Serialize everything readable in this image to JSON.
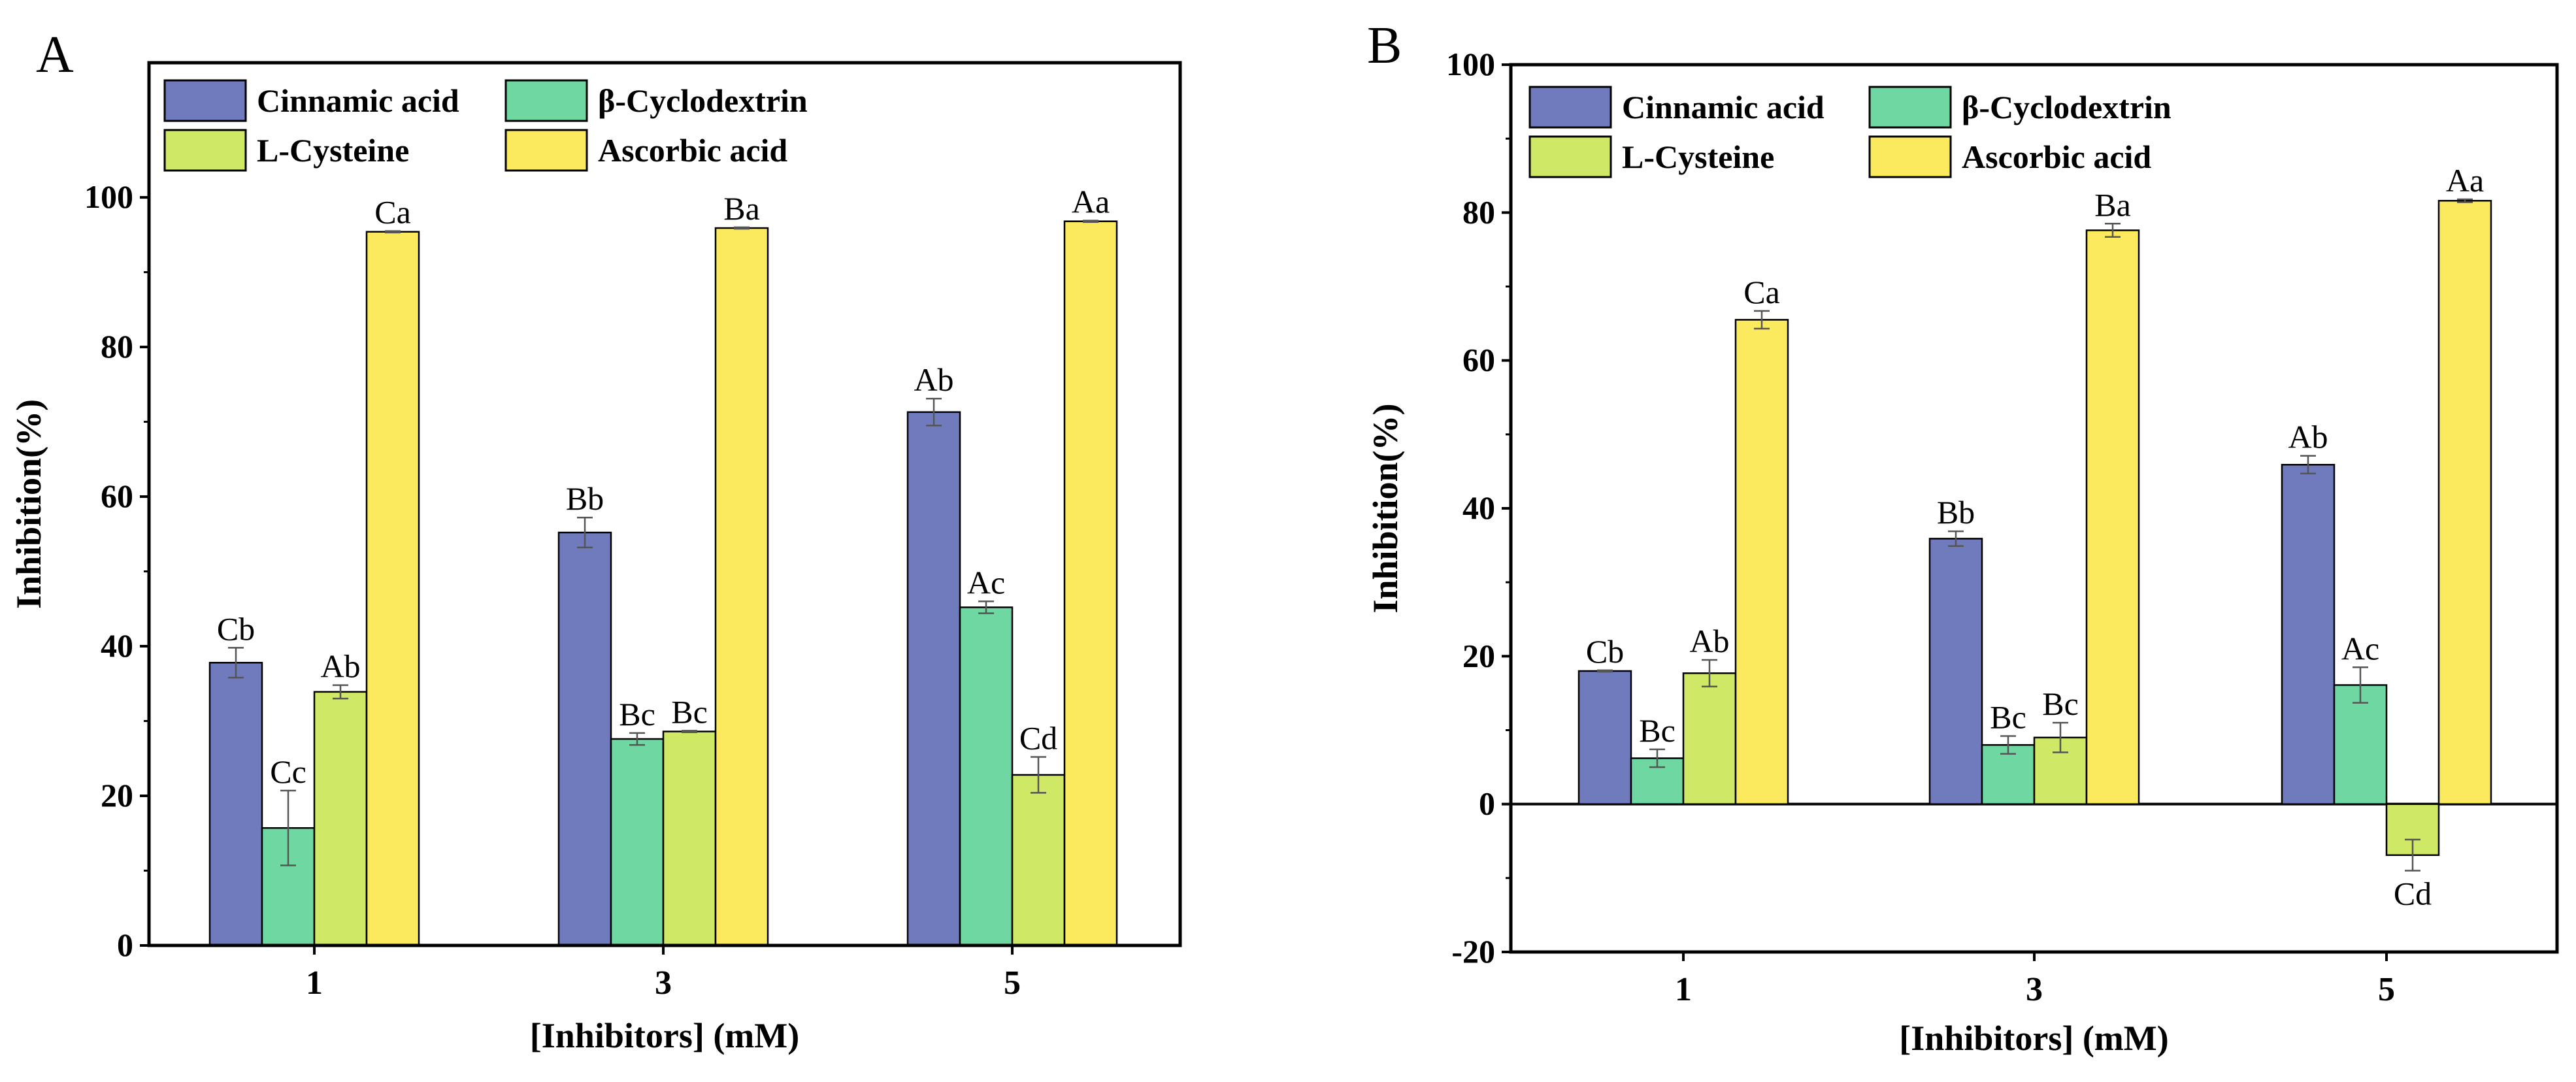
{
  "series_colors": [
    "#6f7bbd",
    "#6fd7a2",
    "#cfe865",
    "#fbea5e"
  ],
  "chart_data": [
    {
      "panel_label": "A",
      "type": "bar",
      "xlabel": "[Inhibitors] (mM)",
      "ylabel": "Inhibition(%)",
      "categories": [
        "1",
        "3",
        "5"
      ],
      "ylim": [
        0,
        118
      ],
      "yticks": [
        0,
        20,
        40,
        60,
        80,
        100
      ],
      "legend": [
        [
          "Cinnamic acid",
          "β-Cyclodextrin"
        ],
        [
          "L-Cysteine",
          "Ascorbic acid"
        ]
      ],
      "series": [
        {
          "name": "Cinnamic acid",
          "values": [
            37.8,
            55.2,
            71.3
          ],
          "errors": [
            2.0,
            2.0,
            1.8
          ],
          "labels": [
            "Cb",
            "Bb",
            "Ab"
          ]
        },
        {
          "name": "β-Cyclodextrin",
          "values": [
            15.7,
            27.6,
            45.2
          ],
          "errors": [
            5.0,
            0.8,
            0.8
          ],
          "labels": [
            "Cc",
            "Bc",
            "Ac"
          ]
        },
        {
          "name": "L-Cysteine",
          "values": [
            33.9,
            28.6,
            22.8
          ],
          "errors": [
            0.9,
            0.1,
            2.4
          ],
          "labels": [
            "Ab",
            "Bc",
            "Cd"
          ]
        },
        {
          "name": "Ascorbic acid",
          "values": [
            95.4,
            95.9,
            96.8
          ],
          "errors": [
            0.1,
            0.1,
            0.1
          ],
          "labels": [
            "Ca",
            "Ba",
            "Aa"
          ]
        }
      ]
    },
    {
      "panel_label": "B",
      "type": "bar",
      "xlabel": "[Inhibitors] (mM)",
      "ylabel": "Inhibition(%)",
      "categories": [
        "1",
        "3",
        "5"
      ],
      "ylim": [
        -20,
        100
      ],
      "yticks": [
        -20,
        0,
        20,
        40,
        60,
        80,
        100
      ],
      "legend": [
        [
          "Cinnamic acid",
          "β-Cyclodextrin"
        ],
        [
          "L-Cysteine",
          "Ascorbic acid"
        ]
      ],
      "series": [
        {
          "name": "Cinnamic acid",
          "values": [
            18.0,
            35.9,
            45.9
          ],
          "errors": [
            0.1,
            1.0,
            1.2
          ],
          "labels": [
            "Cb",
            "Bb",
            "Ab"
          ]
        },
        {
          "name": "β-Cyclodextrin",
          "values": [
            6.2,
            8.0,
            16.1
          ],
          "errors": [
            1.2,
            1.2,
            2.4
          ],
          "labels": [
            "Bc",
            "Bc",
            "Ac"
          ]
        },
        {
          "name": "L-Cysteine",
          "values": [
            17.7,
            9.0,
            -6.9
          ],
          "errors": [
            1.8,
            2.0,
            2.1
          ],
          "labels": [
            "Ab",
            "Bc",
            "Cd"
          ]
        },
        {
          "name": "Ascorbic acid",
          "values": [
            65.5,
            77.6,
            81.6
          ],
          "errors": [
            1.2,
            0.9,
            0.2
          ],
          "labels": [
            "Ca",
            "Ba",
            "Aa"
          ]
        }
      ]
    }
  ]
}
